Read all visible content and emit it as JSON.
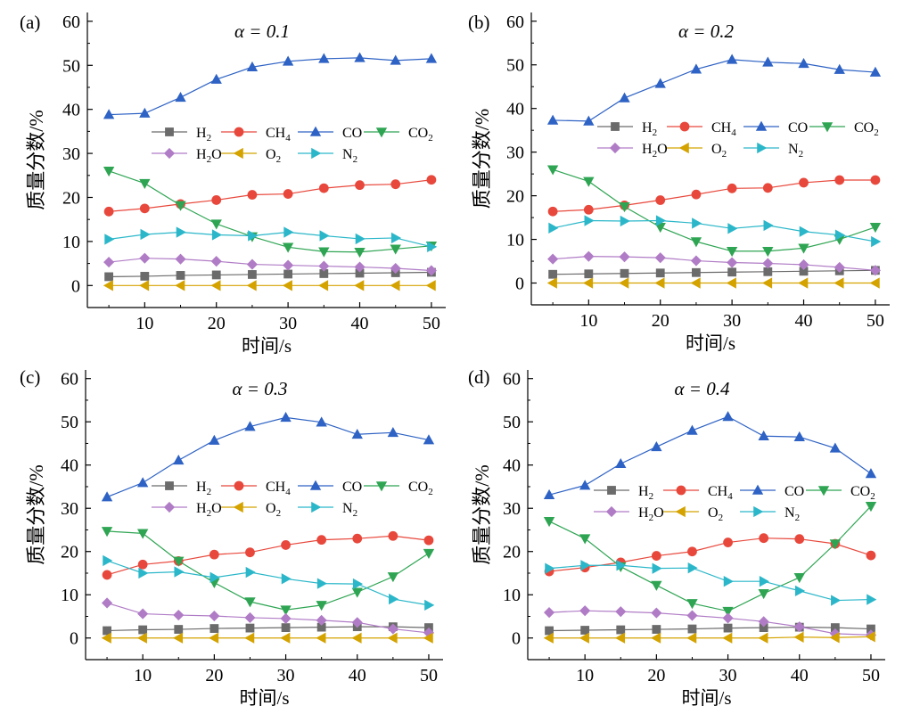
{
  "chart_data": [
    {
      "panel_label": "(a)",
      "title": "α = 0.1",
      "type": "line",
      "xlabel": "时间/s",
      "ylabel": "质量分数/%",
      "x": [
        5,
        10,
        15,
        20,
        25,
        30,
        35,
        40,
        45,
        50
      ],
      "xticks": [
        10,
        20,
        30,
        40,
        50
      ],
      "yticks": [
        0,
        10,
        20,
        30,
        40,
        50,
        60
      ],
      "xlim": [
        2,
        52
      ],
      "ylim": [
        -5,
        62
      ],
      "legend_placement": "center-right",
      "series": [
        {
          "name": "H2",
          "marker": "square",
          "color": "#6b6b6b",
          "values": [
            2.0,
            2.1,
            2.3,
            2.4,
            2.5,
            2.6,
            2.7,
            2.8,
            2.9,
            3.0
          ]
        },
        {
          "name": "CH4",
          "marker": "circle",
          "color": "#e8483c",
          "values": [
            16.8,
            17.5,
            18.5,
            19.4,
            20.6,
            20.8,
            22.1,
            22.8,
            23.0,
            24.0
          ]
        },
        {
          "name": "CO",
          "marker": "triangle-up",
          "color": "#2e62c4",
          "values": [
            38.8,
            39.1,
            42.7,
            46.8,
            49.6,
            50.9,
            51.5,
            51.7,
            51.1,
            51.5
          ]
        },
        {
          "name": "CO2",
          "marker": "triangle-down",
          "color": "#2fa553",
          "values": [
            26.0,
            23.2,
            18.2,
            14.0,
            11.1,
            8.7,
            7.7,
            7.6,
            8.3,
            9.0
          ]
        },
        {
          "name": "H2O",
          "marker": "diamond",
          "color": "#b07cc6",
          "values": [
            5.3,
            6.2,
            6.0,
            5.5,
            4.8,
            4.6,
            4.4,
            4.2,
            3.9,
            3.4
          ]
        },
        {
          "name": "O2",
          "marker": "triangle-left",
          "color": "#d4a300",
          "values": [
            0.0,
            0.0,
            0.0,
            0.0,
            0.0,
            0.0,
            0.0,
            0.0,
            0.0,
            0.0
          ]
        },
        {
          "name": "N2",
          "marker": "triangle-right",
          "color": "#2bb7c9",
          "values": [
            10.5,
            11.6,
            12.1,
            11.5,
            11.3,
            12.1,
            11.3,
            10.6,
            10.8,
            8.8
          ]
        }
      ]
    },
    {
      "panel_label": "(b)",
      "title": "α = 0.2",
      "type": "line",
      "xlabel": "时间/s",
      "ylabel": "质量分数/%",
      "x": [
        5,
        10,
        15,
        20,
        25,
        30,
        35,
        40,
        45,
        50
      ],
      "xticks": [
        10,
        20,
        30,
        40,
        50
      ],
      "yticks": [
        0,
        10,
        20,
        30,
        40,
        50,
        60
      ],
      "xlim": [
        2,
        52
      ],
      "ylim": [
        -5,
        62
      ],
      "legend_placement": "center-right",
      "series": [
        {
          "name": "H2",
          "marker": "square",
          "color": "#6b6b6b",
          "values": [
            2.0,
            2.1,
            2.2,
            2.3,
            2.4,
            2.5,
            2.6,
            2.7,
            2.8,
            2.9
          ]
        },
        {
          "name": "CH4",
          "marker": "circle",
          "color": "#e8483c",
          "values": [
            16.4,
            16.8,
            17.8,
            19.0,
            20.3,
            21.7,
            21.8,
            23.0,
            23.6,
            23.6
          ]
        },
        {
          "name": "CO",
          "marker": "triangle-up",
          "color": "#2e62c4",
          "values": [
            37.3,
            37.1,
            42.4,
            45.7,
            49.0,
            51.2,
            50.6,
            50.3,
            48.9,
            48.3
          ]
        },
        {
          "name": "CO2",
          "marker": "triangle-down",
          "color": "#2fa553",
          "values": [
            26.0,
            23.3,
            17.5,
            12.8,
            9.5,
            7.3,
            7.3,
            8.0,
            10.0,
            12.8
          ]
        },
        {
          "name": "H2O",
          "marker": "diamond",
          "color": "#b07cc6",
          "values": [
            5.5,
            6.1,
            6.0,
            5.8,
            5.1,
            4.7,
            4.5,
            4.2,
            3.6,
            2.9
          ]
        },
        {
          "name": "O2",
          "marker": "triangle-left",
          "color": "#d4a300",
          "values": [
            0.0,
            0.0,
            0.0,
            0.0,
            0.0,
            0.0,
            0.0,
            0.0,
            0.0,
            0.0
          ]
        },
        {
          "name": "N2",
          "marker": "triangle-right",
          "color": "#2bb7c9",
          "values": [
            12.6,
            14.3,
            14.2,
            14.3,
            13.7,
            12.5,
            13.2,
            11.8,
            11.0,
            9.5
          ]
        }
      ]
    },
    {
      "panel_label": "(c)",
      "title": "α = 0.3",
      "type": "line",
      "xlabel": "时间/s",
      "ylabel": "质量分数/%",
      "x": [
        5,
        10,
        15,
        20,
        25,
        30,
        35,
        40,
        45,
        50
      ],
      "xticks": [
        10,
        20,
        30,
        40,
        50
      ],
      "yticks": [
        0,
        10,
        20,
        30,
        40,
        50,
        60
      ],
      "xlim": [
        2,
        52
      ],
      "ylim": [
        -5,
        62
      ],
      "legend_placement": "center-right",
      "series": [
        {
          "name": "H2",
          "marker": "square",
          "color": "#6b6b6b",
          "values": [
            1.7,
            1.9,
            2.0,
            2.2,
            2.3,
            2.4,
            2.5,
            2.6,
            2.6,
            2.4
          ]
        },
        {
          "name": "CH4",
          "marker": "circle",
          "color": "#e8483c",
          "values": [
            14.6,
            17.0,
            17.8,
            19.3,
            19.8,
            21.5,
            22.7,
            23.0,
            23.6,
            22.6
          ]
        },
        {
          "name": "CO",
          "marker": "triangle-up",
          "color": "#2e62c4",
          "values": [
            32.6,
            35.9,
            41.1,
            45.7,
            48.9,
            51.0,
            49.9,
            47.1,
            47.5,
            45.8
          ]
        },
        {
          "name": "CO2",
          "marker": "triangle-down",
          "color": "#2fa553",
          "values": [
            24.7,
            24.2,
            17.8,
            12.8,
            8.4,
            6.5,
            7.6,
            10.6,
            14.2,
            19.6
          ]
        },
        {
          "name": "H2O",
          "marker": "diamond",
          "color": "#b07cc6",
          "values": [
            8.1,
            5.6,
            5.3,
            5.1,
            4.7,
            4.5,
            4.1,
            3.6,
            2.1,
            1.2
          ]
        },
        {
          "name": "O2",
          "marker": "triangle-left",
          "color": "#d4a300",
          "values": [
            0.0,
            0.0,
            0.0,
            0.0,
            0.0,
            0.0,
            0.0,
            0.0,
            0.0,
            0.0
          ]
        },
        {
          "name": "N2",
          "marker": "triangle-right",
          "color": "#2bb7c9",
          "values": [
            17.9,
            15.0,
            15.3,
            14.0,
            15.2,
            13.7,
            12.6,
            12.5,
            9.0,
            7.6
          ]
        }
      ]
    },
    {
      "panel_label": "(d)",
      "title": "α = 0.4",
      "type": "line",
      "xlabel": "时间/s",
      "ylabel": "质量分数/%",
      "x": [
        5,
        10,
        15,
        20,
        25,
        30,
        35,
        40,
        45,
        50
      ],
      "xticks": [
        10,
        20,
        30,
        40,
        50
      ],
      "yticks": [
        0,
        10,
        20,
        30,
        40,
        50,
        60
      ],
      "xlim": [
        2,
        52
      ],
      "ylim": [
        -5,
        62
      ],
      "legend_placement": "center-right",
      "series": [
        {
          "name": "H2",
          "marker": "square",
          "color": "#6b6b6b",
          "values": [
            1.7,
            1.8,
            1.9,
            2.0,
            2.1,
            2.3,
            2.4,
            2.5,
            2.4,
            2.1
          ]
        },
        {
          "name": "CH4",
          "marker": "circle",
          "color": "#e8483c",
          "values": [
            15.4,
            16.3,
            17.5,
            19.0,
            20.0,
            22.1,
            23.1,
            22.9,
            21.8,
            19.1
          ]
        },
        {
          "name": "CO",
          "marker": "triangle-up",
          "color": "#2e62c4",
          "values": [
            33.1,
            35.3,
            40.3,
            44.2,
            48.0,
            51.2,
            46.7,
            46.5,
            43.9,
            38.0
          ]
        },
        {
          "name": "CO2",
          "marker": "triangle-down",
          "color": "#2fa553",
          "values": [
            27.0,
            23.0,
            16.5,
            12.2,
            8.0,
            6.2,
            10.3,
            14.0,
            21.8,
            30.5
          ]
        },
        {
          "name": "H2O",
          "marker": "diamond",
          "color": "#b07cc6",
          "values": [
            5.9,
            6.3,
            6.1,
            5.8,
            5.2,
            4.6,
            3.8,
            2.6,
            1.0,
            0.7
          ]
        },
        {
          "name": "O2",
          "marker": "triangle-left",
          "color": "#d4a300",
          "values": [
            0.0,
            0.0,
            0.0,
            0.0,
            0.0,
            0.0,
            0.0,
            0.2,
            0.1,
            0.3
          ]
        },
        {
          "name": "N2",
          "marker": "triangle-right",
          "color": "#2bb7c9",
          "values": [
            16.1,
            16.8,
            16.8,
            16.1,
            16.2,
            13.1,
            13.1,
            10.9,
            8.7,
            8.9
          ]
        }
      ]
    }
  ]
}
